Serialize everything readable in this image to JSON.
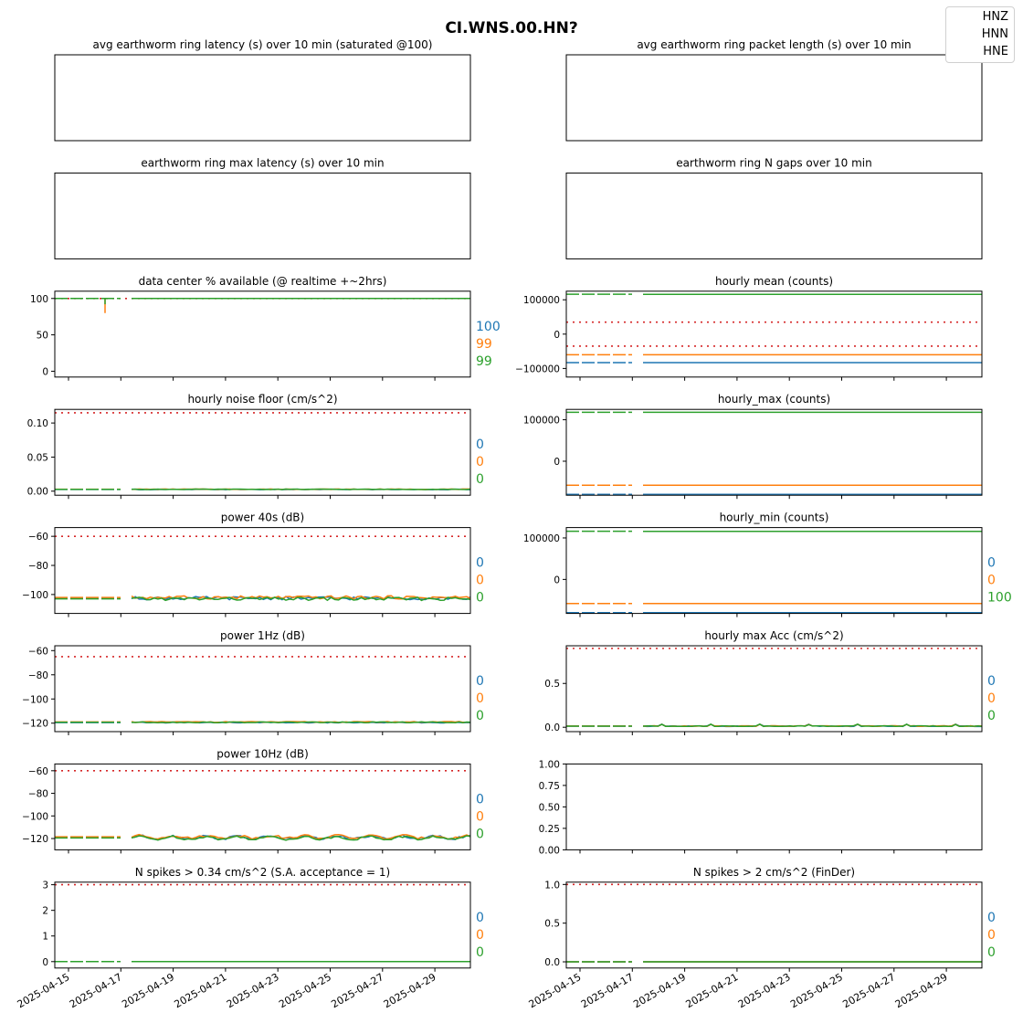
{
  "title": "CI.WNS.00.HN?",
  "legend": [
    "HNZ",
    "HNN",
    "HNE"
  ],
  "colors": {
    "HNZ": "#1f77b4",
    "HNN": "#ff7f0e",
    "HNE": "#2ca02c",
    "threshold": "#d62728"
  },
  "x_tick_labels": [
    "2025-04-15",
    "2025-04-17",
    "2025-04-19",
    "2025-04-21",
    "2025-04-23",
    "2025-04-25",
    "2025-04-27",
    "2025-04-29"
  ],
  "chart_data": [
    {
      "id": "lat-avg",
      "type": "line",
      "title": "avg earthworm ring latency (s)   over 10 min (saturated @100)",
      "series": [],
      "status": []
    },
    {
      "id": "pkt-len",
      "type": "line",
      "title": "avg earthworm ring packet length (s)   over 10 min",
      "series": [],
      "status": []
    },
    {
      "id": "lat-max",
      "type": "line",
      "title": "earthworm ring max latency (s)   over 10 min",
      "series": [],
      "status": []
    },
    {
      "id": "n-gaps",
      "type": "line",
      "title": "earthworm ring N gaps   over 10 min",
      "series": [],
      "status": []
    },
    {
      "id": "avail",
      "type": "line",
      "title": "data center % available (@ realtime +~2hrs)",
      "ylim": [
        -8,
        110
      ],
      "yticks": [
        "0",
        "50",
        "100"
      ],
      "yticks_values": [
        0,
        50,
        100
      ],
      "thresholds": [
        100
      ],
      "series": [
        {
          "name": "HNZ",
          "value": 100
        },
        {
          "name": "HNN",
          "value": 100,
          "dip": 80
        },
        {
          "name": "HNE",
          "value": 100,
          "dip": 92
        }
      ],
      "status": [
        "100",
        "99",
        "99"
      ]
    },
    {
      "id": "mean",
      "type": "line",
      "title": "hourly mean (counts)",
      "ylim": [
        -125000,
        125000
      ],
      "yticks": [
        "−100000",
        "0",
        "100000"
      ],
      "yticks_values": [
        -100000,
        0,
        100000
      ],
      "thresholds": [
        35000,
        -35000
      ],
      "series": [
        {
          "name": "HNZ",
          "value": -83000
        },
        {
          "name": "HNN",
          "value": -60000
        },
        {
          "name": "HNE",
          "value": 116000
        }
      ],
      "status": []
    },
    {
      "id": "noise",
      "type": "line",
      "title": "hourly noise floor (cm/s^2)",
      "ylim": [
        -0.006,
        0.12
      ],
      "yticks": [
        "0.00",
        "0.05",
        "0.10"
      ],
      "yticks_values": [
        0,
        0.05,
        0.1
      ],
      "thresholds": [
        0.115
      ],
      "series": [
        {
          "name": "HNZ",
          "value": 0.0025
        },
        {
          "name": "HNN",
          "value": 0.0028
        },
        {
          "name": "HNE",
          "value": 0.0027
        }
      ],
      "status": [
        "0",
        "0",
        "0"
      ]
    },
    {
      "id": "hmax",
      "type": "line",
      "title": "hourly_max (counts)",
      "ylim": [
        -82000,
        125000
      ],
      "yticks": [
        "0",
        "100000"
      ],
      "yticks_values": [
        0,
        100000
      ],
      "thresholds": [],
      "series": [
        {
          "name": "HNZ",
          "value": -80000
        },
        {
          "name": "HNN",
          "value": -58000
        },
        {
          "name": "HNE",
          "value": 118000
        }
      ],
      "status": []
    },
    {
      "id": "p40",
      "type": "line",
      "title": "power 40s (dB)",
      "ylim": [
        -113,
        -54
      ],
      "yticks": [
        "−100",
        "−80",
        "−60"
      ],
      "yticks_values": [
        -100,
        -80,
        -60
      ],
      "thresholds": [
        -60
      ],
      "series": [
        {
          "name": "HNZ",
          "value": -102.5
        },
        {
          "name": "HNN",
          "value": -102
        },
        {
          "name": "HNE",
          "value": -103
        }
      ],
      "status": [
        "0",
        "0",
        "0"
      ]
    },
    {
      "id": "hmin",
      "type": "line",
      "title": "hourly_min (counts)",
      "ylim": [
        -82000,
        125000
      ],
      "yticks": [
        "0",
        "100000"
      ],
      "yticks_values": [
        0,
        100000
      ],
      "thresholds": [],
      "series": [
        {
          "name": "HNZ",
          "value": -80000
        },
        {
          "name": "HNN",
          "value": -58000
        },
        {
          "name": "HNE",
          "value": 116000
        }
      ],
      "status": [
        "0",
        "0",
        "100"
      ]
    },
    {
      "id": "p1",
      "type": "line",
      "title": "power 1Hz (dB)",
      "ylim": [
        -127,
        -56
      ],
      "yticks": [
        "−120",
        "−100",
        "−80",
        "−60"
      ],
      "yticks_values": [
        -120,
        -100,
        -80,
        -60
      ],
      "thresholds": [
        -65
      ],
      "series": [
        {
          "name": "HNZ",
          "value": -119.5
        },
        {
          "name": "HNN",
          "value": -119
        },
        {
          "name": "HNE",
          "value": -119.3
        }
      ],
      "status": [
        "0",
        "0",
        "0"
      ]
    },
    {
      "id": "hmaxacc",
      "type": "line",
      "title": "hourly max Acc (cm/s^2)",
      "ylim": [
        -0.05,
        0.93
      ],
      "yticks": [
        "0.0",
        "0.5"
      ],
      "yticks_values": [
        0,
        0.5
      ],
      "thresholds": [
        0.9
      ],
      "series": [
        {
          "name": "HNZ",
          "value": 0.012
        },
        {
          "name": "HNN",
          "value": 0.014
        },
        {
          "name": "HNE",
          "value": 0.013
        }
      ],
      "status": [
        "0",
        "0",
        "0"
      ]
    },
    {
      "id": "p10",
      "type": "line",
      "title": "power 10Hz (dB)",
      "ylim": [
        -130,
        -54
      ],
      "yticks": [
        "−120",
        "−100",
        "−80",
        "−60"
      ],
      "yticks_values": [
        -120,
        -100,
        -80,
        -60
      ],
      "thresholds": [
        -60
      ],
      "series": [
        {
          "name": "HNZ",
          "value": -119
        },
        {
          "name": "HNN",
          "value": -118.5
        },
        {
          "name": "HNE",
          "value": -119.5
        }
      ],
      "status": [
        "0",
        "0",
        "0"
      ]
    },
    {
      "id": "blank",
      "type": "line",
      "title": "",
      "ylim": [
        0,
        1
      ],
      "yticks": [
        "0.00",
        "0.25",
        "0.50",
        "0.75",
        "1.00"
      ],
      "yticks_values": [
        0,
        0.25,
        0.5,
        0.75,
        1
      ],
      "thresholds": [],
      "series": [],
      "status": []
    },
    {
      "id": "spk034",
      "type": "line",
      "title": "N spikes > 0.34 cm/s^2 (S.A. acceptance = 1)",
      "ylim": [
        -0.25,
        3.1
      ],
      "yticks": [
        "0",
        "1",
        "2",
        "3"
      ],
      "yticks_values": [
        0,
        1,
        2,
        3
      ],
      "thresholds": [
        3
      ],
      "series": [
        {
          "name": "HNZ",
          "value": 0
        },
        {
          "name": "HNN",
          "value": 0
        },
        {
          "name": "HNE",
          "value": 0
        }
      ],
      "status": [
        "0",
        "0",
        "0"
      ]
    },
    {
      "id": "spk2",
      "type": "line",
      "title": "N spikes > 2 cm/s^2 (FinDer)",
      "ylim": [
        -0.08,
        1.03
      ],
      "yticks": [
        "0.0",
        "0.5",
        "1.0"
      ],
      "yticks_values": [
        0,
        0.5,
        1
      ],
      "thresholds": [
        1
      ],
      "series": [
        {
          "name": "HNZ",
          "value": 0
        },
        {
          "name": "HNN",
          "value": 0
        },
        {
          "name": "HNE",
          "value": 0
        }
      ],
      "status": [
        "0",
        "0",
        "0"
      ]
    }
  ]
}
